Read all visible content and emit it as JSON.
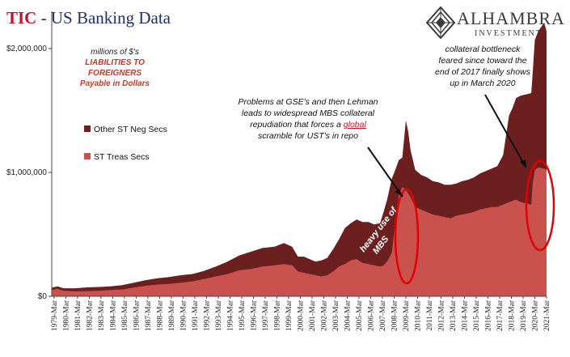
{
  "title": {
    "prefix": "TIC",
    "rest": " - US Banking Data"
  },
  "logo": {
    "name": "ALHAMBRA",
    "sub": "INVESTMENTS",
    "icon": "alhambra-diamond-logo"
  },
  "unit_note": {
    "line1": "millions of $'s",
    "line2": "LIABILITIES TO FOREIGNERS",
    "line3": "Payable in Dollars"
  },
  "annotations": {
    "gse": [
      "Problems at GSE's and then Lehman",
      "leads to widespread MBS collateral",
      "repudiation that forces a ",
      "global",
      " scramble for UST's in repo"
    ],
    "bottleneck": [
      "collateral bottleneck",
      "feared since toward the",
      "end of  2017 finally shows",
      "up in March 2020"
    ],
    "mbs": "heavy use of MBS"
  },
  "colors": {
    "treas": "#c9524f",
    "other": "#6b1f1f",
    "circle": "#e00000",
    "axis": "#444444"
  },
  "chart_data": {
    "type": "area",
    "stacked": true,
    "x_start_year": 1979,
    "x_end_year": 2021.2,
    "ylim": [
      0,
      2300000
    ],
    "yticks": [
      {
        "value": 0,
        "label": "$0"
      },
      {
        "value": 1000000,
        "label": "$1,000,000"
      },
      {
        "value": 2000000,
        "label": "$2,000,000"
      }
    ],
    "xticks": [
      "1979-Mar",
      "1980-Mar",
      "1981-Mar",
      "1982-Mar",
      "1983-Mar",
      "1984-Mar",
      "1985-Mar",
      "1986-Mar",
      "1987-Mar",
      "1988-Mar",
      "1989-Mar",
      "1990-Mar",
      "1991-Mar",
      "1992-Mar",
      "1993-Mar",
      "1994-Mar",
      "1995-Mar",
      "1996-Mar",
      "1997-Mar",
      "1998-Mar",
      "1999-Mar",
      "2000-Mar",
      "2001-Mar",
      "2002-Mar",
      "2003-Mar",
      "2004-Mar",
      "2005-Mar",
      "2006-Mar",
      "2007-Mar",
      "2008-Mar",
      "2009-Mar",
      "2010-Mar",
      "2011-Mar",
      "2012-Mar",
      "2013-Mar",
      "2014-Mar",
      "2015-Mar",
      "2016-Mar",
      "2017-Mar",
      "2018-Mar",
      "2019-Mar",
      "2020-Mar",
      "2021-Mar"
    ],
    "x": [
      1979.0,
      1979.5,
      1980.0,
      1981.0,
      1982.0,
      1983.0,
      1984.0,
      1985.0,
      1986.0,
      1987.0,
      1988.0,
      1989.0,
      1990.0,
      1991.0,
      1992.0,
      1993.0,
      1994.0,
      1995.0,
      1996.0,
      1997.0,
      1998.0,
      1998.8,
      1999.5,
      2000.0,
      2000.5,
      2001.0,
      2001.5,
      2002.0,
      2002.5,
      2003.0,
      2003.5,
      2004.0,
      2004.5,
      2005.0,
      2005.5,
      2006.0,
      2006.5,
      2007.0,
      2007.3,
      2007.6,
      2008.0,
      2008.3,
      2008.6,
      2008.9,
      2009.2,
      2009.4,
      2009.6,
      2009.8,
      2010.0,
      2010.5,
      2011.0,
      2011.5,
      2012.0,
      2012.5,
      2013.0,
      2013.5,
      2014.0,
      2014.5,
      2015.0,
      2015.5,
      2016.0,
      2016.5,
      2017.0,
      2017.5,
      2018.0,
      2018.3,
      2018.6,
      2019.0,
      2019.5,
      2019.9,
      2020.0,
      2020.2,
      2020.5,
      2021.0,
      2021.2
    ],
    "series": [
      {
        "name": "ST Treas Secs",
        "values": [
          50000,
          60000,
          45000,
          40000,
          42000,
          45000,
          50000,
          55000,
          70000,
          85000,
          95000,
          100000,
          110000,
          120000,
          140000,
          160000,
          180000,
          210000,
          220000,
          240000,
          250000,
          260000,
          250000,
          200000,
          190000,
          180000,
          170000,
          160000,
          170000,
          200000,
          240000,
          260000,
          290000,
          300000,
          270000,
          260000,
          250000,
          240000,
          250000,
          280000,
          350000,
          600000,
          820000,
          880000,
          860000,
          830000,
          800000,
          760000,
          720000,
          700000,
          680000,
          660000,
          650000,
          640000,
          630000,
          650000,
          660000,
          670000,
          680000,
          700000,
          710000,
          720000,
          720000,
          740000,
          760000,
          770000,
          780000,
          760000,
          750000,
          740000,
          900000,
          1020000,
          1040000,
          1030000,
          1020000
        ]
      },
      {
        "name": "Other ST Neg Secs",
        "values": [
          20000,
          20000,
          20000,
          25000,
          30000,
          30000,
          30000,
          35000,
          40000,
          45000,
          50000,
          55000,
          60000,
          60000,
          65000,
          80000,
          100000,
          120000,
          140000,
          150000,
          150000,
          170000,
          150000,
          120000,
          130000,
          120000,
          110000,
          130000,
          140000,
          180000,
          220000,
          290000,
          300000,
          320000,
          330000,
          340000,
          330000,
          350000,
          430000,
          500000,
          600000,
          420000,
          280000,
          240000,
          560000,
          500000,
          380000,
          340000,
          300000,
          280000,
          280000,
          270000,
          270000,
          260000,
          270000,
          260000,
          270000,
          270000,
          280000,
          290000,
          300000,
          310000,
          330000,
          400000,
          700000,
          750000,
          820000,
          860000,
          880000,
          900000,
          880000,
          1050000,
          1100000,
          1180000,
          1120000
        ]
      }
    ],
    "legend": [
      "Other ST Neg Secs",
      "ST Treas Secs"
    ]
  }
}
